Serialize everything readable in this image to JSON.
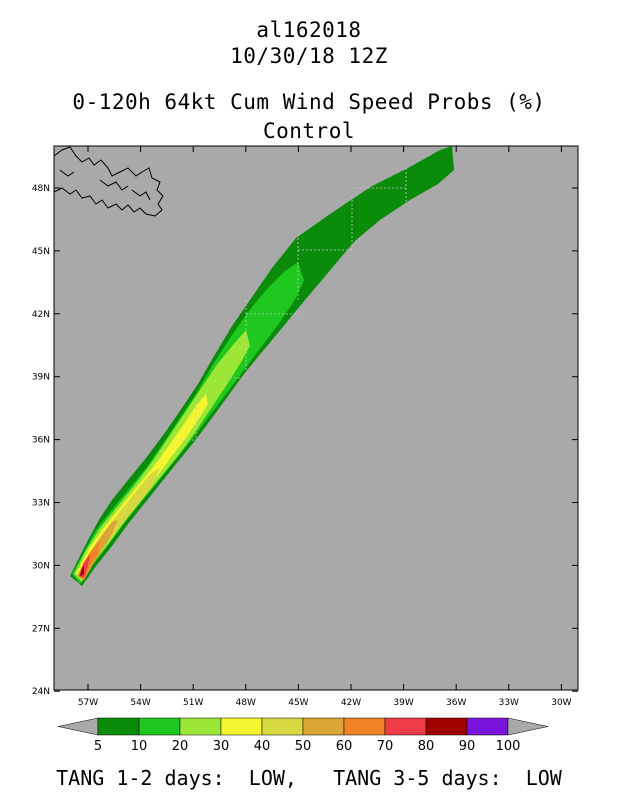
{
  "header": {
    "storm_id": "al162018",
    "datetime": "10/30/18 12Z",
    "product": "0-120h 64kt Cum Wind Speed Probs (%)",
    "member": "Control"
  },
  "axes": {
    "lat_labels": [
      "48N",
      "45N",
      "42N",
      "39N",
      "36N",
      "33N",
      "30N",
      "27N",
      "24N"
    ],
    "lon_labels": [
      "57W",
      "54W",
      "51W",
      "48W",
      "45W",
      "42W",
      "39W",
      "36W",
      "33W",
      "30W"
    ]
  },
  "legend": {
    "values": [
      "5",
      "10",
      "20",
      "30",
      "40",
      "50",
      "60",
      "70",
      "80",
      "90",
      "100"
    ],
    "colors": [
      "#0a8c0a",
      "#1ec81e",
      "#9be637",
      "#f5f532",
      "#d7d741",
      "#dca537",
      "#f08228",
      "#f03c46",
      "#a00000",
      "#7814dc"
    ],
    "arrow_color": "#a9a9a9"
  },
  "colors": {
    "ocean": "#a9a9a9",
    "prob_5": "#0a8c0a",
    "prob_10": "#1ec81e",
    "prob_20": "#9be637",
    "prob_30": "#f5f532",
    "prob_40": "#d7d741",
    "prob_50": "#dca537",
    "prob_60": "#f08228",
    "prob_70": "#f03c46",
    "prob_80": "#a00000"
  },
  "footer": {
    "text": "TANG 1-2 days:  LOW,   TANG 3-5 days:  LOW"
  }
}
